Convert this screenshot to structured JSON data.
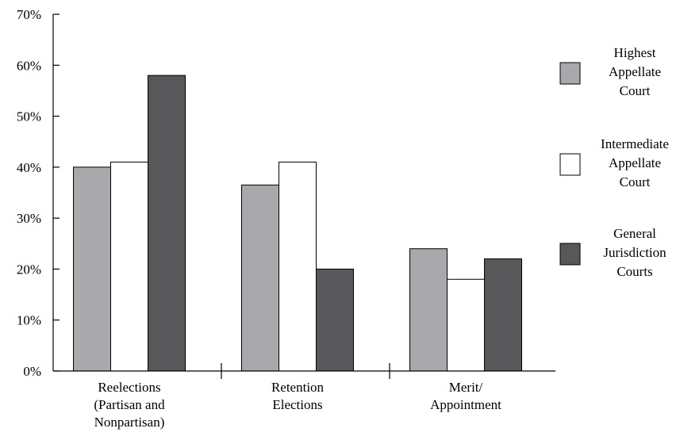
{
  "chart_data": {
    "type": "bar",
    "categories": [
      [
        "Reelections",
        "(Partisan and",
        "Nonpartisan)"
      ],
      [
        "Retention",
        "Elections"
      ],
      [
        "Merit/",
        "Appointment"
      ]
    ],
    "series": [
      {
        "name": [
          "Highest",
          "Appellate",
          "Court"
        ],
        "values": [
          40,
          36.5,
          24
        ],
        "color": "#a9a9ab"
      },
      {
        "name": [
          "Intermediate",
          "Appellate",
          "Court"
        ],
        "values": [
          41,
          41,
          18
        ],
        "color": "#ffffff"
      },
      {
        "name": [
          "General",
          "Jurisdiction",
          "Courts"
        ],
        "values": [
          58,
          20,
          22
        ],
        "color": "#58585a"
      }
    ],
    "yticks": [
      "0%",
      "10%",
      "20%",
      "30%",
      "40%",
      "50%",
      "60%",
      "70%"
    ],
    "ylim": [
      0,
      70
    ],
    "grid": false,
    "legend_position": "right",
    "title": "",
    "xlabel": "",
    "ylabel": ""
  }
}
